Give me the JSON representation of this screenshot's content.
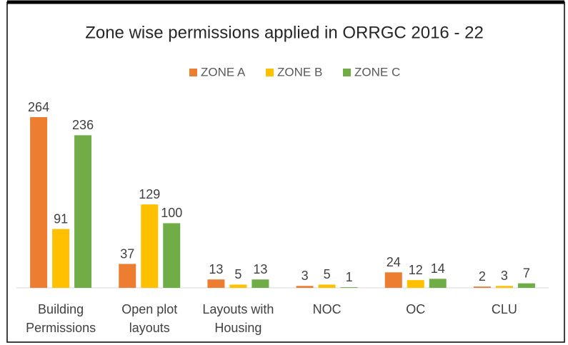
{
  "chart_data": {
    "type": "bar",
    "title": "Zone wise permissions applied in ORRGC 2016 - 22",
    "categories": [
      "Building Permissions",
      "Open plot layouts",
      "Layouts with Housing",
      "NOC",
      "OC",
      "CLU"
    ],
    "series": [
      {
        "name": "ZONE A",
        "color": "#ED7D31",
        "values": [
          264,
          37,
          13,
          3,
          24,
          2
        ]
      },
      {
        "name": "ZONE B",
        "color": "#FFC000",
        "values": [
          91,
          129,
          5,
          5,
          12,
          3
        ]
      },
      {
        "name": "ZONE C",
        "color": "#70AD47",
        "values": [
          236,
          100,
          13,
          1,
          14,
          7
        ]
      }
    ],
    "legend": "top"
  }
}
